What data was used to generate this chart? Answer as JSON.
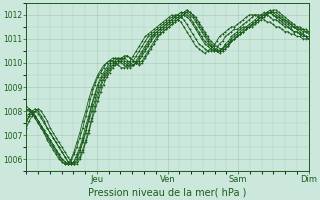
{
  "title": "Pression niveau de la mer( hPa )",
  "background_color": "#cce8dc",
  "grid_color": "#aacfbf",
  "line_color": "#1a5c1a",
  "ylim": [
    1005.5,
    1012.5
  ],
  "yticks": [
    1006,
    1007,
    1008,
    1009,
    1010,
    1011,
    1012
  ],
  "day_labels": [
    "Jeu",
    "Ven",
    "Sam",
    "Dim"
  ],
  "day_positions": [
    0.25,
    0.5,
    0.75,
    1.0
  ],
  "num_points": 96,
  "series": [
    [
      1007.5,
      1007.8,
      1007.9,
      1008.0,
      1007.9,
      1007.7,
      1007.5,
      1007.3,
      1007.1,
      1006.9,
      1006.7,
      1006.5,
      1006.3,
      1006.1,
      1005.9,
      1005.8,
      1005.8,
      1005.9,
      1006.1,
      1006.4,
      1006.8,
      1007.2,
      1007.7,
      1008.2,
      1008.6,
      1009.0,
      1009.3,
      1009.5,
      1009.7,
      1009.9,
      1010.0,
      1010.1,
      1010.2,
      1010.2,
      1010.1,
      1010.0,
      1009.9,
      1010.0,
      1010.1,
      1010.3,
      1010.5,
      1010.7,
      1010.9,
      1011.1,
      1011.2,
      1011.3,
      1011.4,
      1011.5,
      1011.6,
      1011.7,
      1011.8,
      1011.9,
      1012.0,
      1012.1,
      1012.2,
      1012.1,
      1012.0,
      1011.9,
      1011.7,
      1011.5,
      1011.3,
      1011.1,
      1010.9,
      1010.8,
      1010.7,
      1010.6,
      1010.6,
      1010.7,
      1010.8,
      1010.9,
      1011.0,
      1011.1,
      1011.2,
      1011.3,
      1011.4,
      1011.5,
      1011.5,
      1011.6,
      1011.7,
      1011.8,
      1011.9,
      1012.0,
      1012.1,
      1012.2,
      1012.2,
      1012.1,
      1012.0,
      1011.9,
      1011.8,
      1011.7,
      1011.6,
      1011.5,
      1011.5,
      1011.4,
      1011.4,
      1011.3
    ],
    [
      1007.8,
      1007.9,
      1008.0,
      1007.8,
      1007.6,
      1007.4,
      1007.2,
      1007.0,
      1006.8,
      1006.6,
      1006.4,
      1006.2,
      1006.0,
      1005.9,
      1005.8,
      1005.8,
      1005.9,
      1006.1,
      1006.4,
      1006.8,
      1007.2,
      1007.7,
      1008.2,
      1008.6,
      1009.0,
      1009.3,
      1009.5,
      1009.7,
      1009.9,
      1010.0,
      1010.1,
      1010.2,
      1010.2,
      1010.1,
      1010.0,
      1009.9,
      1009.9,
      1010.0,
      1010.2,
      1010.4,
      1010.6,
      1010.8,
      1011.0,
      1011.2,
      1011.3,
      1011.4,
      1011.5,
      1011.6,
      1011.7,
      1011.8,
      1011.9,
      1012.0,
      1012.1,
      1012.1,
      1012.0,
      1011.9,
      1011.7,
      1011.5,
      1011.3,
      1011.1,
      1010.9,
      1010.8,
      1010.7,
      1010.6,
      1010.5,
      1010.5,
      1010.6,
      1010.7,
      1010.8,
      1011.0,
      1011.1,
      1011.2,
      1011.3,
      1011.4,
      1011.5,
      1011.5,
      1011.6,
      1011.7,
      1011.8,
      1011.9,
      1012.0,
      1012.0,
      1012.1,
      1012.1,
      1012.0,
      1011.9,
      1011.8,
      1011.8,
      1011.7,
      1011.6,
      1011.5,
      1011.5,
      1011.4,
      1011.4,
      1011.3,
      1011.3
    ],
    [
      1008.0,
      1008.1,
      1008.0,
      1007.8,
      1007.6,
      1007.4,
      1007.2,
      1007.0,
      1006.8,
      1006.6,
      1006.4,
      1006.2,
      1006.0,
      1005.9,
      1005.8,
      1005.8,
      1005.9,
      1006.2,
      1006.5,
      1006.9,
      1007.4,
      1007.8,
      1008.3,
      1008.7,
      1009.1,
      1009.4,
      1009.6,
      1009.8,
      1010.0,
      1010.1,
      1010.2,
      1010.2,
      1010.1,
      1010.0,
      1009.9,
      1009.8,
      1009.9,
      1010.1,
      1010.3,
      1010.5,
      1010.7,
      1010.9,
      1011.1,
      1011.2,
      1011.3,
      1011.4,
      1011.5,
      1011.6,
      1011.7,
      1011.8,
      1011.9,
      1012.0,
      1012.1,
      1012.0,
      1011.9,
      1011.8,
      1011.6,
      1011.4,
      1011.2,
      1011.0,
      1010.8,
      1010.7,
      1010.6,
      1010.5,
      1010.5,
      1010.5,
      1010.6,
      1010.8,
      1010.9,
      1011.1,
      1011.2,
      1011.3,
      1011.4,
      1011.5,
      1011.5,
      1011.6,
      1011.7,
      1011.8,
      1011.9,
      1012.0,
      1012.0,
      1012.1,
      1012.1,
      1012.0,
      1011.9,
      1011.9,
      1011.8,
      1011.7,
      1011.6,
      1011.5,
      1011.5,
      1011.4,
      1011.4,
      1011.3,
      1011.3,
      1011.2
    ],
    [
      1008.1,
      1008.0,
      1007.9,
      1007.7,
      1007.5,
      1007.3,
      1007.1,
      1006.9,
      1006.7,
      1006.5,
      1006.3,
      1006.1,
      1005.9,
      1005.8,
      1005.8,
      1005.9,
      1006.2,
      1006.5,
      1006.9,
      1007.3,
      1007.8,
      1008.2,
      1008.7,
      1009.1,
      1009.4,
      1009.6,
      1009.8,
      1010.0,
      1010.1,
      1010.2,
      1010.2,
      1010.1,
      1010.0,
      1009.9,
      1009.8,
      1009.9,
      1010.1,
      1010.3,
      1010.5,
      1010.7,
      1010.9,
      1011.1,
      1011.2,
      1011.3,
      1011.4,
      1011.5,
      1011.6,
      1011.7,
      1011.8,
      1011.9,
      1012.0,
      1012.0,
      1011.9,
      1011.8,
      1011.6,
      1011.4,
      1011.2,
      1011.0,
      1010.8,
      1010.7,
      1010.6,
      1010.5,
      1010.5,
      1010.5,
      1010.6,
      1010.8,
      1010.9,
      1011.1,
      1011.2,
      1011.3,
      1011.4,
      1011.4,
      1011.5,
      1011.6,
      1011.7,
      1011.8,
      1011.9,
      1012.0,
      1012.0,
      1012.0,
      1012.1,
      1012.0,
      1011.9,
      1011.8,
      1011.8,
      1011.7,
      1011.6,
      1011.5,
      1011.5,
      1011.4,
      1011.3,
      1011.3,
      1011.2,
      1011.2,
      1011.1,
      1011.1
    ],
    [
      1008.2,
      1008.1,
      1007.9,
      1007.7,
      1007.5,
      1007.3,
      1007.1,
      1006.8,
      1006.6,
      1006.4,
      1006.2,
      1006.0,
      1005.9,
      1005.8,
      1005.8,
      1006.0,
      1006.3,
      1006.7,
      1007.1,
      1007.6,
      1008.0,
      1008.5,
      1008.9,
      1009.2,
      1009.5,
      1009.7,
      1009.9,
      1010.0,
      1010.1,
      1010.1,
      1010.0,
      1009.9,
      1009.8,
      1009.8,
      1009.9,
      1010.1,
      1010.3,
      1010.5,
      1010.7,
      1010.9,
      1011.1,
      1011.2,
      1011.3,
      1011.4,
      1011.5,
      1011.6,
      1011.7,
      1011.8,
      1011.9,
      1012.0,
      1011.9,
      1011.8,
      1011.7,
      1011.5,
      1011.3,
      1011.1,
      1010.9,
      1010.7,
      1010.6,
      1010.5,
      1010.4,
      1010.5,
      1010.6,
      1010.7,
      1010.9,
      1011.1,
      1011.2,
      1011.3,
      1011.4,
      1011.5,
      1011.5,
      1011.6,
      1011.7,
      1011.8,
      1011.9,
      1012.0,
      1012.0,
      1012.0,
      1011.9,
      1011.9,
      1011.8,
      1011.7,
      1011.7,
      1011.6,
      1011.5,
      1011.5,
      1011.4,
      1011.3,
      1011.3,
      1011.2,
      1011.2,
      1011.1,
      1011.1,
      1011.0,
      1011.0,
      1011.0
    ],
    [
      1007.6,
      1007.8,
      1008.0,
      1008.1,
      1008.0,
      1007.8,
      1007.6,
      1007.3,
      1007.1,
      1006.9,
      1006.7,
      1006.5,
      1006.3,
      1006.1,
      1005.9,
      1005.8,
      1005.8,
      1006.0,
      1006.3,
      1006.7,
      1007.1,
      1007.6,
      1008.0,
      1008.4,
      1008.8,
      1009.1,
      1009.4,
      1009.6,
      1009.8,
      1009.9,
      1010.0,
      1010.1,
      1010.2,
      1010.3,
      1010.3,
      1010.2,
      1010.1,
      1010.0,
      1010.0,
      1010.1,
      1010.3,
      1010.5,
      1010.7,
      1010.9,
      1011.1,
      1011.2,
      1011.3,
      1011.4,
      1011.5,
      1011.6,
      1011.7,
      1011.8,
      1011.9,
      1012.0,
      1012.2,
      1012.1,
      1012.0,
      1011.8,
      1011.6,
      1011.4,
      1011.2,
      1011.0,
      1010.8,
      1010.7,
      1010.5,
      1010.5,
      1010.5,
      1010.6,
      1010.7,
      1010.9,
      1011.0,
      1011.1,
      1011.2,
      1011.3,
      1011.4,
      1011.5,
      1011.6,
      1011.7,
      1011.8,
      1011.9,
      1012.0,
      1012.1,
      1012.2,
      1012.1,
      1012.1,
      1012.0,
      1011.9,
      1011.8,
      1011.7,
      1011.6,
      1011.5,
      1011.4,
      1011.3,
      1011.2,
      1011.1,
      1011.0
    ],
    [
      1007.3,
      1007.6,
      1007.8,
      1008.0,
      1008.1,
      1008.0,
      1007.8,
      1007.6,
      1007.3,
      1007.1,
      1006.9,
      1006.7,
      1006.5,
      1006.3,
      1006.1,
      1005.9,
      1005.8,
      1005.8,
      1006.0,
      1006.3,
      1006.7,
      1007.1,
      1007.6,
      1008.0,
      1008.4,
      1008.8,
      1009.1,
      1009.4,
      1009.6,
      1009.8,
      1009.9,
      1010.0,
      1010.1,
      1010.2,
      1010.3,
      1010.2,
      1010.1,
      1010.0,
      1009.9,
      1010.0,
      1010.2,
      1010.4,
      1010.6,
      1010.8,
      1011.0,
      1011.2,
      1011.3,
      1011.4,
      1011.5,
      1011.6,
      1011.7,
      1011.8,
      1011.9,
      1012.0,
      1012.1,
      1012.0,
      1011.9,
      1011.7,
      1011.5,
      1011.3,
      1011.1,
      1010.9,
      1010.7,
      1010.6,
      1010.5,
      1010.4,
      1010.5,
      1010.6,
      1010.7,
      1010.9,
      1011.0,
      1011.1,
      1011.2,
      1011.3,
      1011.4,
      1011.5,
      1011.6,
      1011.7,
      1011.8,
      1011.9,
      1012.0,
      1012.1,
      1012.1,
      1012.0,
      1011.9,
      1011.8,
      1011.7,
      1011.6,
      1011.5,
      1011.4,
      1011.3,
      1011.3,
      1011.2,
      1011.1,
      1011.1,
      1011.0
    ]
  ]
}
